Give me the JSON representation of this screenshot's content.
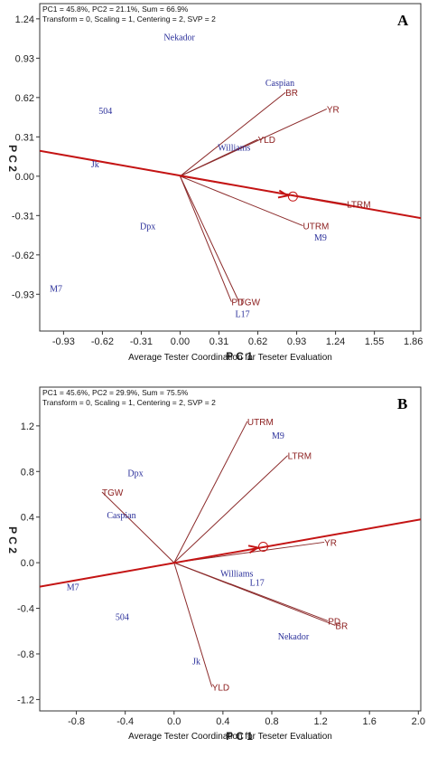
{
  "chart_data": [
    {
      "type": "scatter",
      "panel_label": "A",
      "stats_line1": "PC1 = 45.8%, PC2 = 21.1%, Sum = 66.9%",
      "stats_line2": "Transform = 0, Scaling = 1, Centering = 2, SVP = 2",
      "xlabel": "P C 1",
      "ylabel": "P C 2",
      "subtitle": "Average Tester Coordination for Teseter Evaluation",
      "x_ticks": [
        "-0.93",
        "-0.62",
        "-0.31",
        "0.00",
        "0.31",
        "0.62",
        "0.93",
        "1.24",
        "1.55",
        "1.86"
      ],
      "y_ticks": [
        "1.24",
        "0.93",
        "0.62",
        "0.31",
        "0.00",
        "-0.31",
        "-0.62",
        "-0.93"
      ],
      "xlim": [
        -1.12,
        1.92
      ],
      "ylim": [
        -1.22,
        1.36
      ],
      "genotypes": [
        {
          "name": "Nekador",
          "x": -0.13,
          "y": 1.1
        },
        {
          "name": "Caspian",
          "x": 0.68,
          "y": 0.74
        },
        {
          "name": "504",
          "x": -0.65,
          "y": 0.52
        },
        {
          "name": "Williams",
          "x": 0.3,
          "y": 0.23
        },
        {
          "name": "Jk",
          "x": -0.71,
          "y": 0.1
        },
        {
          "name": "Dpx",
          "x": -0.32,
          "y": -0.39
        },
        {
          "name": "M9",
          "x": 1.07,
          "y": -0.48
        },
        {
          "name": "M7",
          "x": -1.04,
          "y": -0.88
        },
        {
          "name": "L17",
          "x": 0.44,
          "y": -1.08
        }
      ],
      "testers": [
        {
          "name": "BR",
          "x": 0.84,
          "y": 0.66
        },
        {
          "name": "YR",
          "x": 1.17,
          "y": 0.53
        },
        {
          "name": "YLD",
          "x": 0.62,
          "y": 0.29
        },
        {
          "name": "LTRM",
          "x": 1.33,
          "y": -0.22
        },
        {
          "name": "UTRM",
          "x": 0.98,
          "y": -0.39
        },
        {
          "name": "PD",
          "x": 0.41,
          "y": -0.99
        },
        {
          "name": "TGW",
          "x": 0.47,
          "y": -0.99
        }
      ],
      "ate_axis": {
        "x1": -1.12,
        "y1": 0.2,
        "x2": 1.92,
        "y2": -0.33
      },
      "ate_circle": {
        "x": 0.9,
        "y": -0.16
      }
    },
    {
      "type": "scatter",
      "panel_label": "B",
      "stats_line1": "PC1 = 45.6%, PC2 = 29.9%, Sum = 75.5%",
      "stats_line2": "Transform = 0, Scaling = 1, Centering = 2, SVP = 2",
      "xlabel": "P C 1",
      "ylabel": "P C 2",
      "subtitle": "Average Tester Coordination for Teseter Evaluation",
      "x_ticks": [
        "-0.8",
        "-0.4",
        "0.0",
        "0.4",
        "0.8",
        "1.2",
        "1.6",
        "2.0"
      ],
      "y_ticks": [
        "1.2",
        "0.8",
        "0.4",
        "0.0",
        "-0.4",
        "-0.8",
        "-1.2"
      ],
      "xlim": [
        -1.1,
        2.02
      ],
      "ylim": [
        -1.3,
        1.54
      ],
      "genotypes": [
        {
          "name": "M9",
          "x": 0.8,
          "y": 1.12
        },
        {
          "name": "Dpx",
          "x": -0.38,
          "y": 0.79
        },
        {
          "name": "Caspian",
          "x": -0.55,
          "y": 0.42
        },
        {
          "name": "Williams",
          "x": 0.38,
          "y": -0.09
        },
        {
          "name": "L17",
          "x": 0.62,
          "y": -0.17
        },
        {
          "name": "M7",
          "x": -0.88,
          "y": -0.21
        },
        {
          "name": "504",
          "x": -0.48,
          "y": -0.47
        },
        {
          "name": "Nekador",
          "x": 0.85,
          "y": -0.64
        },
        {
          "name": "Jk",
          "x": 0.15,
          "y": -0.86
        }
      ],
      "testers": [
        {
          "name": "UTRM",
          "x": 0.6,
          "y": 1.24
        },
        {
          "name": "LTRM",
          "x": 0.93,
          "y": 0.94
        },
        {
          "name": "TGW",
          "x": -0.59,
          "y": 0.62
        },
        {
          "name": "YR",
          "x": 1.23,
          "y": 0.18
        },
        {
          "name": "PD",
          "x": 1.26,
          "y": -0.51
        },
        {
          "name": "BR",
          "x": 1.32,
          "y": -0.55
        },
        {
          "name": "YLD",
          "x": 0.31,
          "y": -1.09
        }
      ],
      "ate_axis": {
        "x1": -1.1,
        "y1": -0.21,
        "x2": 2.02,
        "y2": 0.38
      },
      "ate_circle": {
        "x": 0.73,
        "y": 0.14
      }
    }
  ]
}
